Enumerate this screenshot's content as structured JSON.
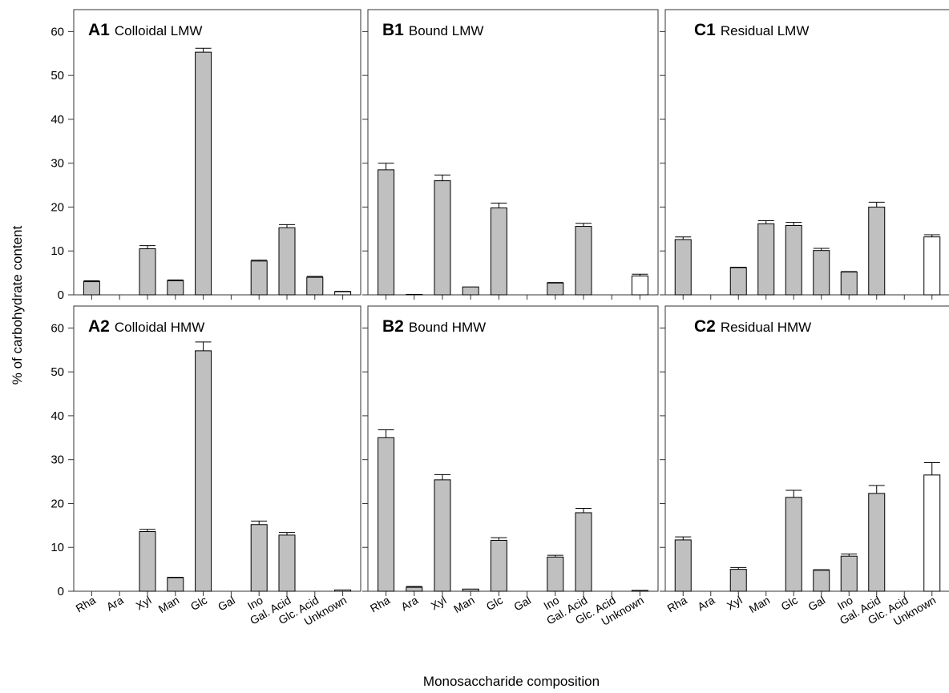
{
  "figure": {
    "ylabel": "% of carbohydrate content",
    "xlabel": "Monosaccharide composition"
  },
  "chart_data": [
    {
      "type": "bar",
      "panel": "A1",
      "title": "Colloidal LMW",
      "categories": [
        "Rha",
        "Ara",
        "Xyl",
        "Man",
        "Glc",
        "Gal",
        "Ino",
        "Gal. Acid",
        "Glc. Acid",
        "Unknown"
      ],
      "values": [
        3.0,
        0,
        10.5,
        3.2,
        55.3,
        0,
        7.7,
        15.3,
        4.0,
        0.7
      ],
      "errors": [
        0.2,
        0,
        0.7,
        0.2,
        0.9,
        0,
        0.2,
        0.7,
        0.2,
        0.1
      ],
      "colors": [
        "#c0c0c0",
        "#c0c0c0",
        "#c0c0c0",
        "#c0c0c0",
        "#c0c0c0",
        "#c0c0c0",
        "#c0c0c0",
        "#c0c0c0",
        "#c0c0c0",
        "#ffffff"
      ],
      "ylim": [
        0,
        65
      ],
      "yticks": [
        0,
        10,
        20,
        30,
        40,
        50,
        60
      ],
      "show_ytick_labels": true,
      "show_xtick_labels": false
    },
    {
      "type": "bar",
      "panel": "B1",
      "title": "Bound LMW",
      "categories": [
        "Rha",
        "Ara",
        "Xyl",
        "Man",
        "Glc",
        "Gal",
        "Ino",
        "Gal. Acid",
        "Glc. Acid",
        "Unknown"
      ],
      "values": [
        28.5,
        0.1,
        26.0,
        1.8,
        19.8,
        0,
        2.7,
        15.6,
        0,
        4.3
      ],
      "errors": [
        1.5,
        0,
        1.3,
        0,
        1.1,
        0,
        0.1,
        0.7,
        0,
        0.4
      ],
      "colors": [
        "#c0c0c0",
        "#c0c0c0",
        "#c0c0c0",
        "#c0c0c0",
        "#c0c0c0",
        "#c0c0c0",
        "#c0c0c0",
        "#c0c0c0",
        "#c0c0c0",
        "#ffffff"
      ],
      "ylim": [
        0,
        65
      ],
      "yticks": [
        0,
        10,
        20,
        30,
        40,
        50,
        60
      ],
      "show_ytick_labels": false,
      "show_xtick_labels": false
    },
    {
      "type": "bar",
      "panel": "C1",
      "title": "Residual LMW",
      "categories": [
        "Rha",
        "Ara",
        "Xyl",
        "Man",
        "Glc",
        "Gal",
        "Ino",
        "Gal. Acid",
        "Glc. Acid",
        "Unknown"
      ],
      "values": [
        12.6,
        0,
        6.2,
        16.2,
        15.8,
        10.1,
        5.2,
        20.0,
        0,
        13.2
      ],
      "errors": [
        0.6,
        0,
        0.1,
        0.7,
        0.7,
        0.5,
        0.1,
        1.1,
        0,
        0.5
      ],
      "colors": [
        "#c0c0c0",
        "#c0c0c0",
        "#c0c0c0",
        "#c0c0c0",
        "#c0c0c0",
        "#c0c0c0",
        "#c0c0c0",
        "#c0c0c0",
        "#c0c0c0",
        "#ffffff"
      ],
      "ylim": [
        0,
        65
      ],
      "yticks": [
        0,
        10,
        20,
        30,
        40,
        50,
        60
      ],
      "show_ytick_labels": false,
      "show_xtick_labels": false
    },
    {
      "type": "bar",
      "panel": "A2",
      "title": "Colloidal HMW",
      "categories": [
        "Rha",
        "Ara",
        "Xyl",
        "Man",
        "Glc",
        "Gal",
        "Ino",
        "Gal. Acid",
        "Glc. Acid",
        "Unknown"
      ],
      "values": [
        0,
        0,
        13.6,
        3.1,
        54.8,
        0,
        15.2,
        12.8,
        0,
        0.3
      ],
      "errors": [
        0,
        0,
        0.5,
        0.1,
        2.0,
        0,
        0.8,
        0.6,
        0,
        0
      ],
      "colors": [
        "#c0c0c0",
        "#c0c0c0",
        "#c0c0c0",
        "#c0c0c0",
        "#c0c0c0",
        "#c0c0c0",
        "#c0c0c0",
        "#c0c0c0",
        "#c0c0c0",
        "#ffffff"
      ],
      "ylim": [
        0,
        65
      ],
      "yticks": [
        0,
        10,
        20,
        30,
        40,
        50,
        60
      ],
      "show_ytick_labels": true,
      "show_xtick_labels": true
    },
    {
      "type": "bar",
      "panel": "B2",
      "title": "Bound HMW",
      "categories": [
        "Rha",
        "Ara",
        "Xyl",
        "Man",
        "Glc",
        "Gal",
        "Ino",
        "Gal. Acid",
        "Glc. Acid",
        "Unknown"
      ],
      "values": [
        35.0,
        0.9,
        25.4,
        0.5,
        11.6,
        0,
        7.8,
        17.9,
        0,
        0.2
      ],
      "errors": [
        1.8,
        0.2,
        1.2,
        0,
        0.6,
        0,
        0.4,
        1.0,
        0,
        0
      ],
      "colors": [
        "#c0c0c0",
        "#c0c0c0",
        "#c0c0c0",
        "#c0c0c0",
        "#c0c0c0",
        "#c0c0c0",
        "#c0c0c0",
        "#c0c0c0",
        "#c0c0c0",
        "#ffffff"
      ],
      "ylim": [
        0,
        65
      ],
      "yticks": [
        0,
        10,
        20,
        30,
        40,
        50,
        60
      ],
      "show_ytick_labels": false,
      "show_xtick_labels": true
    },
    {
      "type": "bar",
      "panel": "C2",
      "title": "Residual HMW",
      "categories": [
        "Rha",
        "Ara",
        "Xyl",
        "Man",
        "Glc",
        "Gal",
        "Ino",
        "Gal. Acid",
        "Glc. Acid",
        "Unknown"
      ],
      "values": [
        11.7,
        0,
        5.0,
        0,
        21.4,
        4.8,
        8.0,
        22.3,
        0,
        26.5
      ],
      "errors": [
        0.7,
        0,
        0.4,
        0,
        1.6,
        0.1,
        0.5,
        1.8,
        0,
        2.8
      ],
      "colors": [
        "#c0c0c0",
        "#c0c0c0",
        "#c0c0c0",
        "#c0c0c0",
        "#c0c0c0",
        "#c0c0c0",
        "#c0c0c0",
        "#c0c0c0",
        "#c0c0c0",
        "#ffffff"
      ],
      "ylim": [
        0,
        65
      ],
      "yticks": [
        0,
        10,
        20,
        30,
        40,
        50,
        60
      ],
      "show_ytick_labels": false,
      "show_xtick_labels": true
    }
  ]
}
